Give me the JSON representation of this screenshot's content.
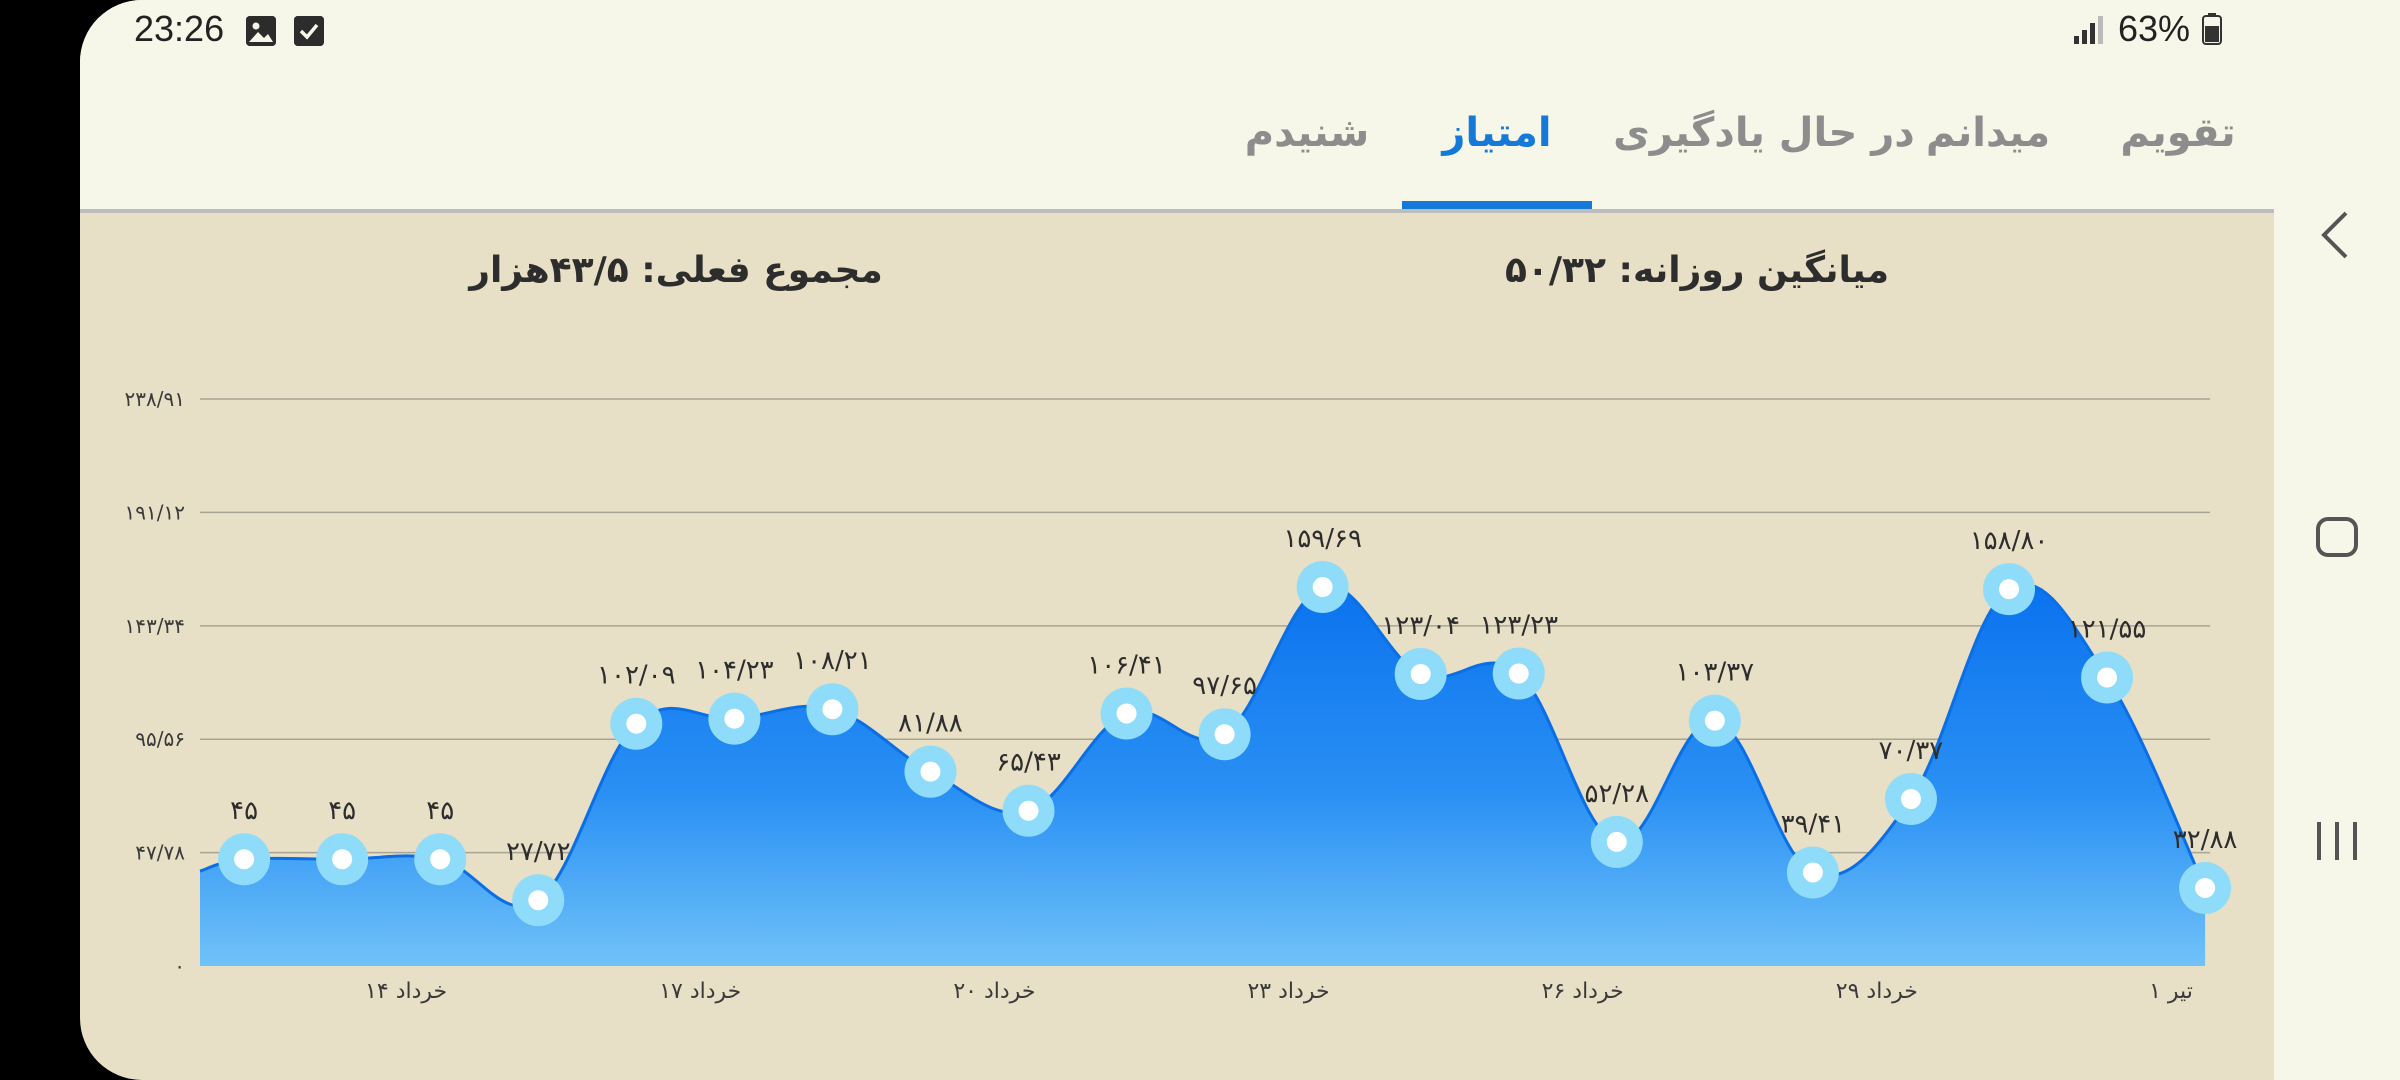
{
  "status_bar": {
    "time": "23:26",
    "battery": "63%",
    "icons": [
      "gallery-icon",
      "checkbox-icon",
      "signal-icon",
      "battery-icon"
    ]
  },
  "tabs": [
    {
      "label": "تقویم",
      "active": false
    },
    {
      "label": "میدانم",
      "active": false
    },
    {
      "label": "در حال یادگیری",
      "active": false
    },
    {
      "label": "امتیاز",
      "active": true
    },
    {
      "label": "شنیدم",
      "active": false
    }
  ],
  "summary": {
    "daily_average": "میانگین روزانه: ۵۰/۳۲",
    "current_total": "مجموع فعلی: ۴۳/۵هزار"
  },
  "colors": {
    "accent": "#1479d8",
    "area_top": "#0a78f0",
    "area_bottom": "#6ec0f8",
    "point_ring": "#8fdcfa"
  },
  "chart_data": {
    "type": "area",
    "y_ticks": [
      "۰",
      "۴۷/۷۸",
      "۹۵/۵۶",
      "۱۴۳/۳۴",
      "۱۹۱/۱۲",
      "۲۳۸/۹۱"
    ],
    "y_tick_values": [
      0,
      47.78,
      95.56,
      143.34,
      191.12,
      238.91
    ],
    "ylim": [
      0,
      238.91
    ],
    "xlim": [
      0,
      20.5
    ],
    "x_ticks": [
      {
        "x": 2,
        "label": "۱۴ خرداد"
      },
      {
        "x": 5,
        "label": "۱۷ خرداد"
      },
      {
        "x": 8,
        "label": "۲۰ خرداد"
      },
      {
        "x": 11,
        "label": "۲۳ خرداد"
      },
      {
        "x": 14,
        "label": "۲۶ خرداد"
      },
      {
        "x": 17,
        "label": "۲۹ خرداد"
      },
      {
        "x": 20,
        "label": "۱ تیر"
      }
    ],
    "points": [
      {
        "x": 0.45,
        "y": 45,
        "label": "۴۵"
      },
      {
        "x": 1.45,
        "y": 45,
        "label": "۴۵"
      },
      {
        "x": 2.45,
        "y": 45,
        "label": "۴۵"
      },
      {
        "x": 3.45,
        "y": 27.72,
        "label": "۲۷/۷۲"
      },
      {
        "x": 4.45,
        "y": 102.09,
        "label": "۱۰۲/۰۹"
      },
      {
        "x": 5.45,
        "y": 104.23,
        "label": "۱۰۴/۲۳"
      },
      {
        "x": 6.45,
        "y": 108.21,
        "label": "۱۰۸/۲۱"
      },
      {
        "x": 7.45,
        "y": 81.88,
        "label": "۸۱/۸۸"
      },
      {
        "x": 8.45,
        "y": 65.43,
        "label": "۶۵/۴۳"
      },
      {
        "x": 9.45,
        "y": 106.41,
        "label": "۱۰۶/۴۱"
      },
      {
        "x": 10.45,
        "y": 97.65,
        "label": "۹۷/۶۵"
      },
      {
        "x": 11.45,
        "y": 159.69,
        "label": "۱۵۹/۶۹"
      },
      {
        "x": 12.45,
        "y": 123.04,
        "label": "۱۲۳/۰۴"
      },
      {
        "x": 13.45,
        "y": 123.23,
        "label": "۱۲۳/۲۳"
      },
      {
        "x": 14.45,
        "y": 52.28,
        "label": "۵۲/۲۸"
      },
      {
        "x": 15.45,
        "y": 103.37,
        "label": "۱۰۳/۳۷"
      },
      {
        "x": 16.45,
        "y": 39.41,
        "label": "۳۹/۴۱"
      },
      {
        "x": 17.45,
        "y": 70.37,
        "label": "۷۰/۳۷"
      },
      {
        "x": 18.45,
        "y": 158.8,
        "label": "۱۵۸/۸۰"
      },
      {
        "x": 19.45,
        "y": 121.55,
        "label": "۱۲۱/۵۵"
      },
      {
        "x": 20.45,
        "y": 32.88,
        "label": "۳۲/۸۸"
      }
    ],
    "grid": true
  }
}
